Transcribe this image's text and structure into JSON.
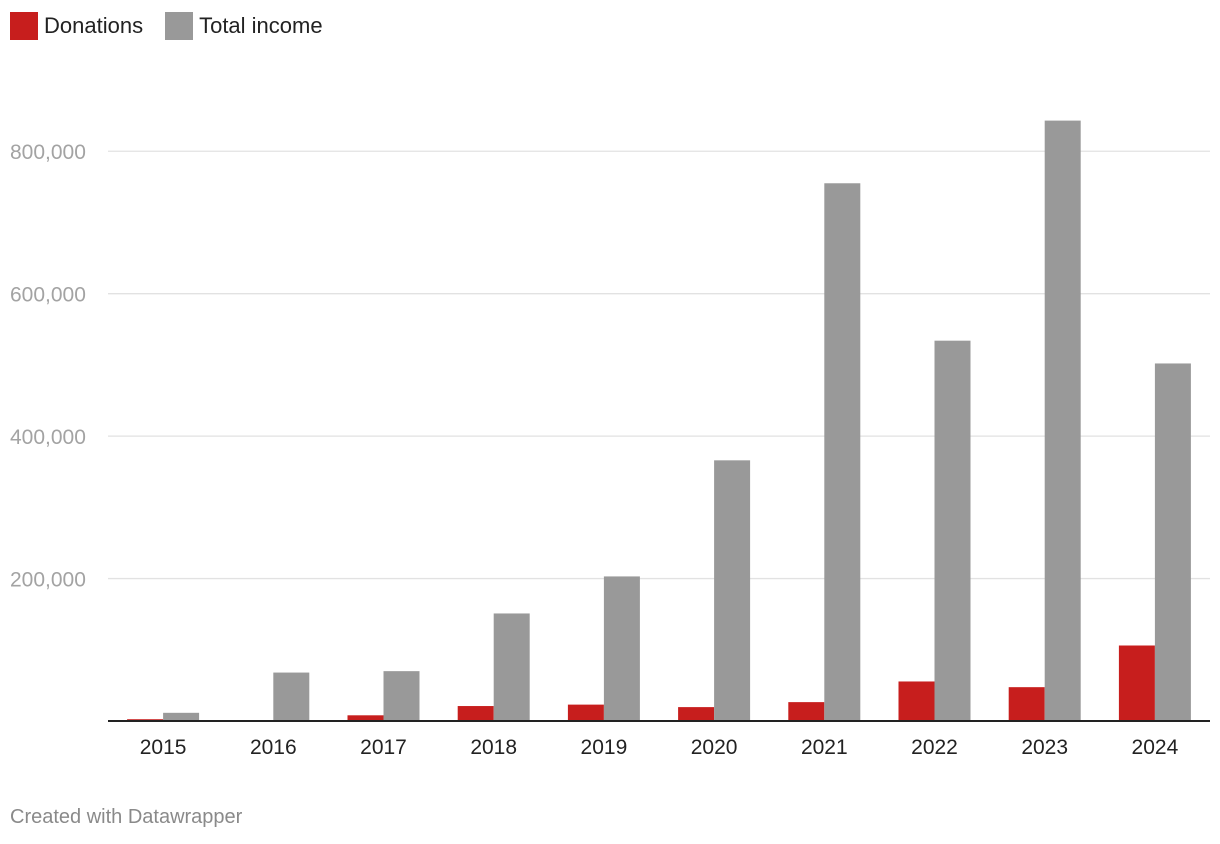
{
  "chart_data": {
    "type": "bar",
    "categories": [
      "2015",
      "2016",
      "2017",
      "2018",
      "2019",
      "2020",
      "2021",
      "2022",
      "2023",
      "2024"
    ],
    "series": [
      {
        "name": "Donations",
        "color": "#c71e1d",
        "values": [
          2500,
          0,
          8000,
          21000,
          23000,
          19500,
          26500,
          55500,
          47500,
          106000
        ]
      },
      {
        "name": "Total income",
        "color": "#999999",
        "values": [
          11500,
          68000,
          70000,
          151000,
          203000,
          366000,
          755000,
          534000,
          843000,
          502000
        ]
      }
    ],
    "ylim": [
      0,
      900000
    ],
    "yticks": [
      200000,
      400000,
      600000,
      800000
    ],
    "ytick_labels": [
      "200,000",
      "400,000",
      "600,000",
      "800,000"
    ],
    "grid": true,
    "legend_position": "top-left"
  },
  "footer": {
    "credit": "Created with Datawrapper"
  }
}
